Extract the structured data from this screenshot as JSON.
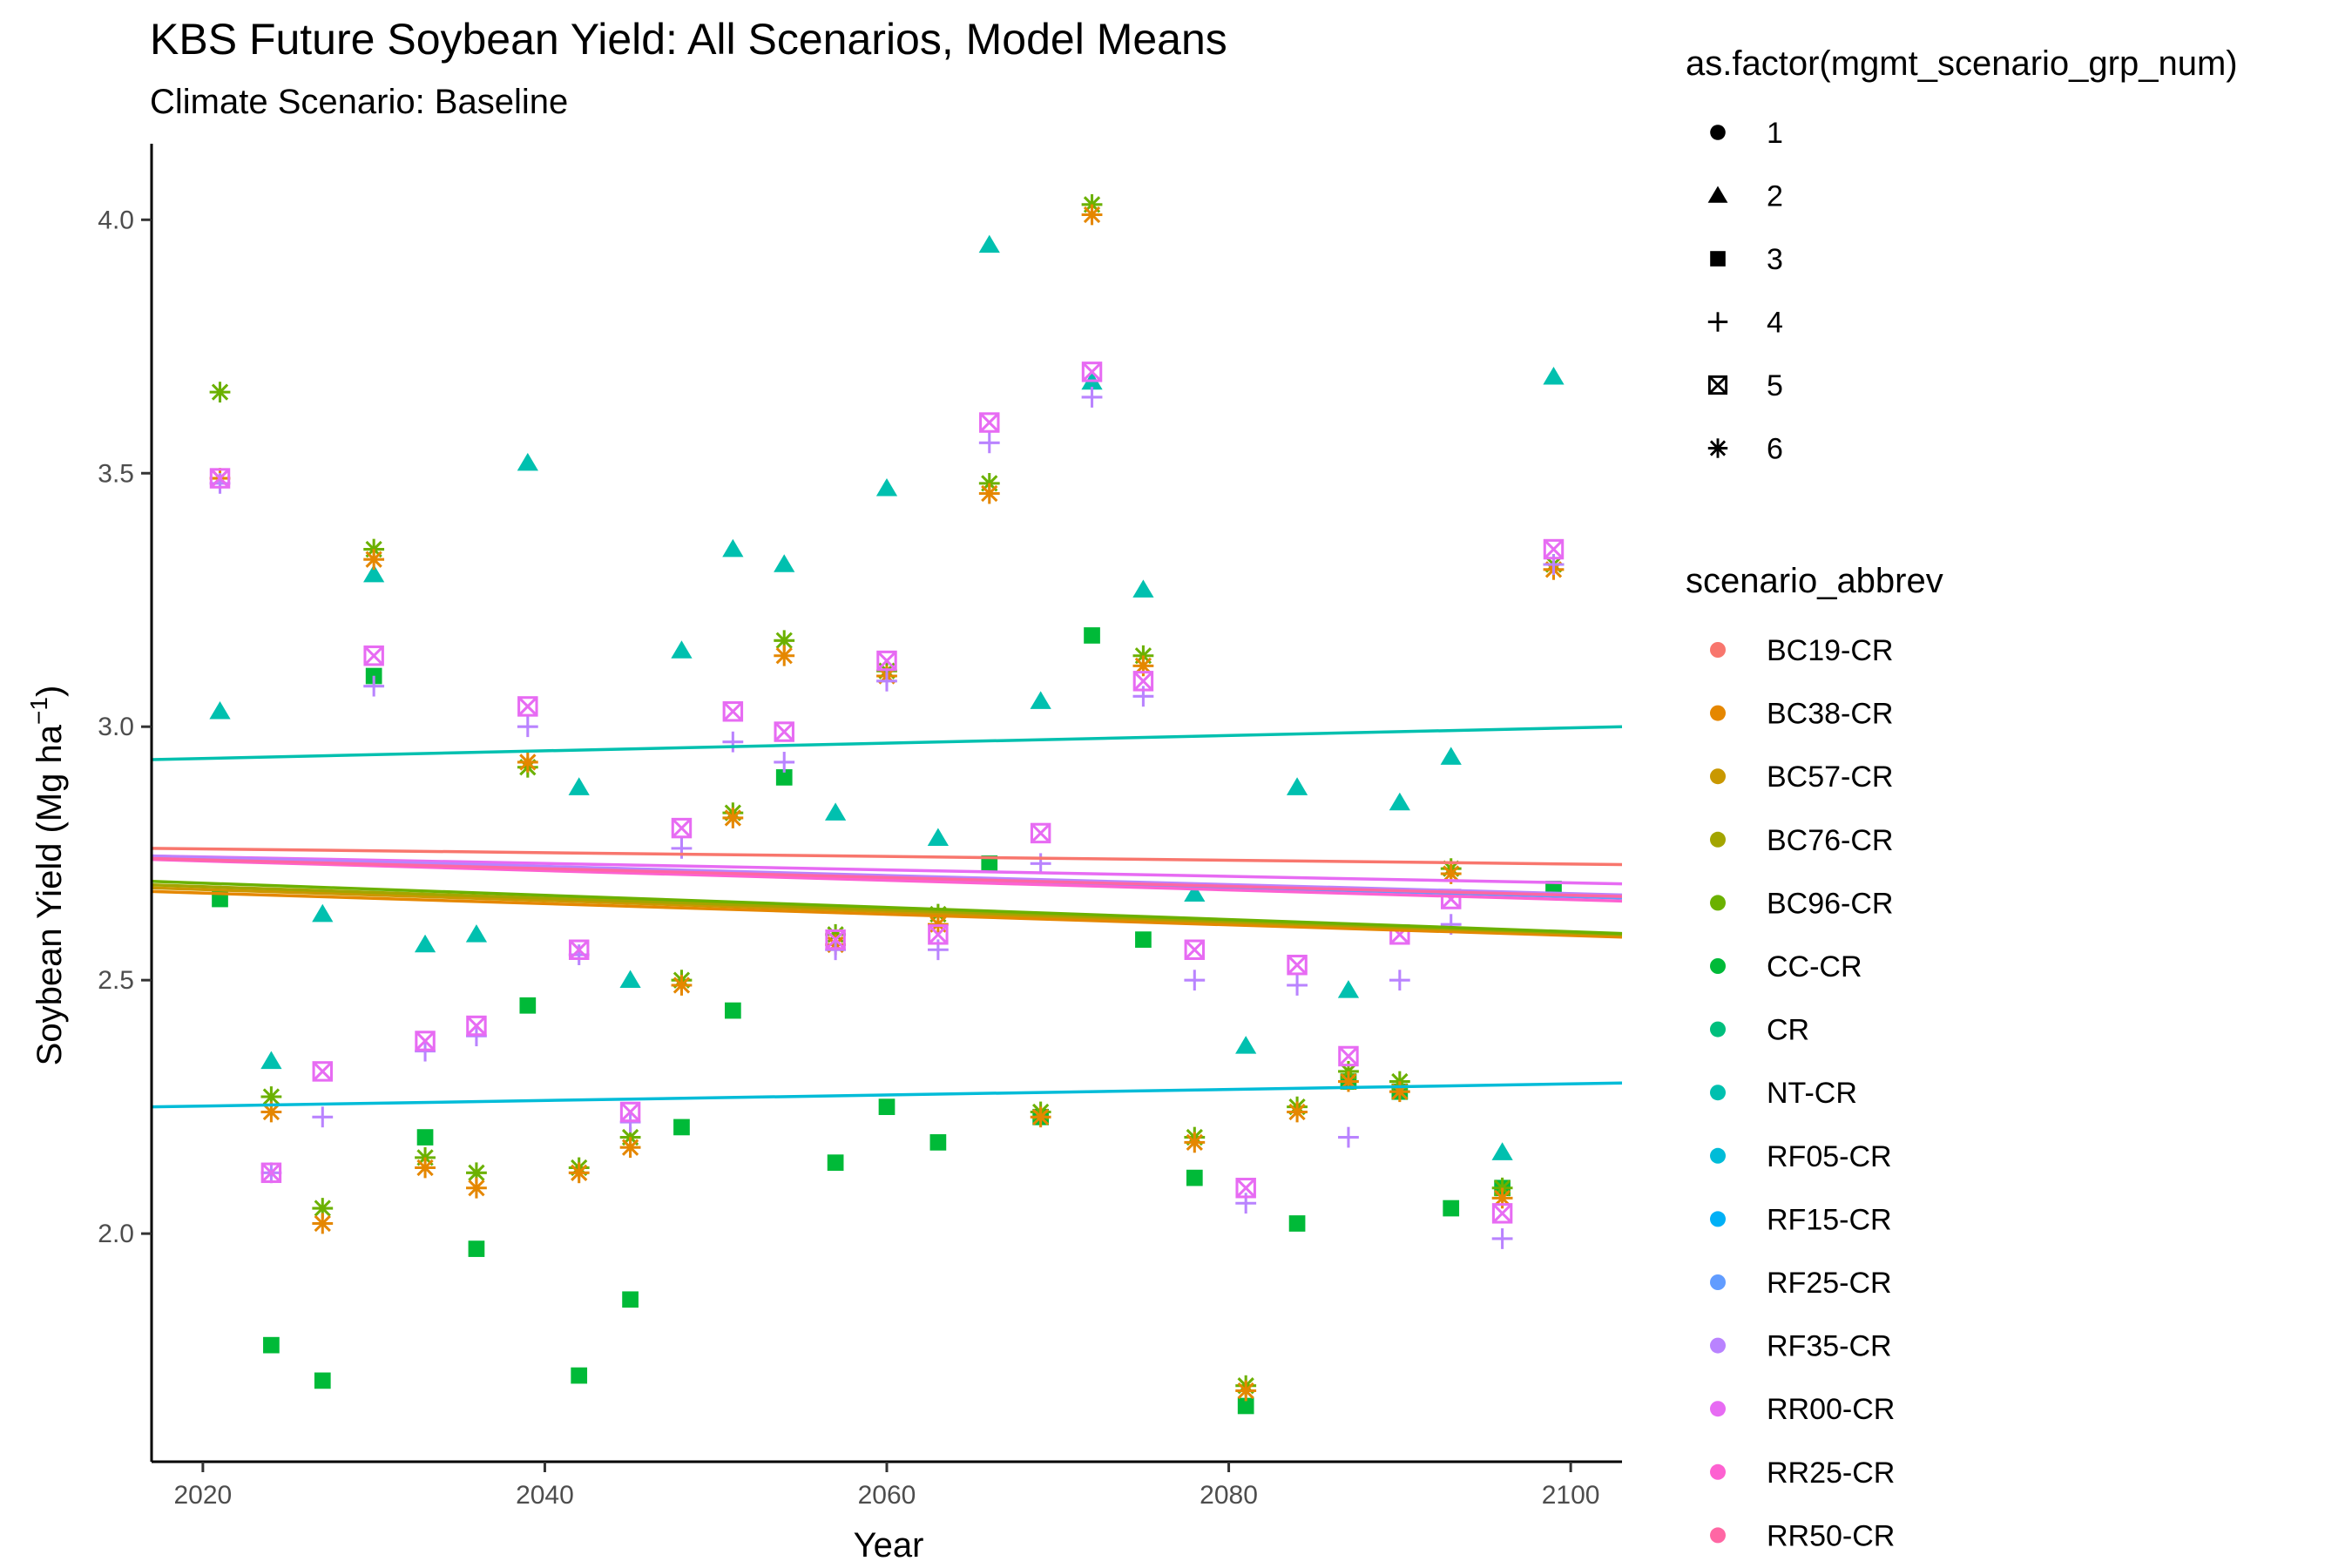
{
  "chart_data": {
    "type": "scatter",
    "title": "KBS  Future Soybean Yield: All Scenarios, Model Means",
    "subtitle": "Climate Scenario: Baseline",
    "xlabel": "Year",
    "ylabel_main": "Soybean Yield (Mg ha",
    "ylabel_sup": "−1",
    "ylabel_end": ")",
    "xlim": [
      2017,
      2103
    ],
    "ylim": [
      1.55,
      4.15
    ],
    "x_ticks": [
      2020,
      2040,
      2060,
      2080,
      2100
    ],
    "y_ticks": [
      2.0,
      2.5,
      3.0,
      3.5,
      4.0
    ],
    "y_tick_labels": [
      "2.0",
      "2.5",
      "3.0",
      "3.5",
      "4.0"
    ],
    "grid": false,
    "legend_position": "right",
    "shape_legend": {
      "title": "as.factor(mgmt_scenario_grp_num)",
      "entries": [
        {
          "label": "1",
          "shape": "circle"
        },
        {
          "label": "2",
          "shape": "triangle"
        },
        {
          "label": "3",
          "shape": "square"
        },
        {
          "label": "4",
          "shape": "plus"
        },
        {
          "label": "5",
          "shape": "boxx"
        },
        {
          "label": "6",
          "shape": "asterisk"
        }
      ]
    },
    "color_legend": {
      "title": "scenario_abbrev",
      "entries": [
        {
          "label": "BC19-CR",
          "color": "#F8766D"
        },
        {
          "label": "BC38-CR",
          "color": "#E58700"
        },
        {
          "label": "BC57-CR",
          "color": "#C99800"
        },
        {
          "label": "BC76-CR",
          "color": "#A3A500"
        },
        {
          "label": "BC96-CR",
          "color": "#6BB100"
        },
        {
          "label": "CC-CR",
          "color": "#00BA38"
        },
        {
          "label": "CR",
          "color": "#00BF7D"
        },
        {
          "label": "NT-CR",
          "color": "#00C0AF"
        },
        {
          "label": "RF05-CR",
          "color": "#00BCD8"
        },
        {
          "label": "RF15-CR",
          "color": "#00B0F6"
        },
        {
          "label": "RF25-CR",
          "color": "#619CFF"
        },
        {
          "label": "RF35-CR",
          "color": "#B983FF"
        },
        {
          "label": "RR00-CR",
          "color": "#E76BF3"
        },
        {
          "label": "RR25-CR",
          "color": "#FD61D1"
        },
        {
          "label": "RR50-CR",
          "color": "#FF67A4"
        }
      ]
    },
    "years": [
      2021,
      2024,
      2027,
      2030,
      2033,
      2036,
      2039,
      2042,
      2045,
      2048,
      2051,
      2054,
      2057,
      2060,
      2063,
      2066,
      2069,
      2072,
      2075,
      2078,
      2081,
      2084,
      2087,
      2090,
      2093,
      2096,
      2099
    ],
    "series": [
      {
        "group": "2",
        "color": "#00C0AF",
        "values": [
          3.03,
          2.34,
          2.63,
          3.3,
          2.57,
          2.59,
          3.52,
          2.88,
          2.5,
          3.15,
          3.35,
          3.32,
          2.83,
          3.47,
          2.78,
          3.95,
          3.05,
          3.68,
          3.27,
          2.67,
          2.37,
          2.88,
          2.48,
          2.85,
          2.94,
          2.16,
          3.69
        ]
      },
      {
        "group": "3",
        "color": "#00BA38",
        "values": [
          2.66,
          1.78,
          1.71,
          3.1,
          2.19,
          1.97,
          2.45,
          1.72,
          1.87,
          2.21,
          2.44,
          2.9,
          2.14,
          2.25,
          2.18,
          2.73,
          2.23,
          3.18,
          2.58,
          2.11,
          1.66,
          2.02,
          2.3,
          2.28,
          2.05,
          2.09,
          2.68
        ]
      },
      {
        "group": "6",
        "color": "#6BB100",
        "values": [
          3.66,
          2.27,
          2.05,
          3.35,
          2.15,
          2.12,
          2.92,
          2.13,
          2.19,
          2.5,
          2.83,
          3.17,
          2.59,
          3.11,
          2.63,
          3.48,
          2.24,
          4.03,
          3.14,
          2.19,
          1.7,
          2.25,
          2.32,
          2.3,
          2.72,
          2.09,
          3.32
        ]
      },
      {
        "group": "6",
        "color": "#E58700",
        "values": [
          3.49,
          2.24,
          2.02,
          3.33,
          2.13,
          2.09,
          2.93,
          2.12,
          2.17,
          2.49,
          2.82,
          3.14,
          2.57,
          3.1,
          2.61,
          3.46,
          2.23,
          4.01,
          3.12,
          2.18,
          1.69,
          2.24,
          2.3,
          2.28,
          2.71,
          2.07,
          3.31
        ]
      },
      {
        "group": "4",
        "color": "#B983FF",
        "values": [
          3.48,
          2.12,
          2.23,
          3.08,
          2.36,
          2.39,
          3.0,
          2.55,
          2.22,
          2.76,
          2.97,
          2.93,
          2.56,
          3.09,
          2.56,
          3.56,
          2.73,
          3.65,
          3.06,
          2.5,
          2.06,
          2.49,
          2.19,
          2.5,
          2.61,
          1.99,
          3.32
        ]
      },
      {
        "group": "5",
        "color": "#E76BF3",
        "values": [
          3.49,
          2.12,
          2.32,
          3.14,
          2.38,
          2.41,
          3.04,
          2.56,
          2.24,
          2.8,
          3.03,
          2.99,
          2.58,
          3.13,
          2.59,
          3.6,
          2.79,
          3.7,
          3.09,
          2.56,
          2.09,
          2.53,
          2.35,
          2.59,
          2.66,
          2.04,
          3.35
        ]
      }
    ],
    "trend_lines": [
      {
        "name": "NT-CR",
        "color": "#00C0AF",
        "x": [
          2017,
          2103
        ],
        "y": [
          2.935,
          3.0
        ]
      },
      {
        "name": "RF05-CR",
        "color": "#00BCD8",
        "x": [
          2017,
          2103
        ],
        "y": [
          2.25,
          2.297
        ]
      },
      {
        "name": "BC19-CR",
        "color": "#F8766D",
        "x": [
          2017,
          2103
        ],
        "y": [
          2.76,
          2.728
        ]
      },
      {
        "name": "RR00-CR",
        "color": "#E76BF3",
        "x": [
          2017,
          2103
        ],
        "y": [
          2.745,
          2.69
        ]
      },
      {
        "name": "RF25-CR",
        "color": "#619CFF",
        "x": [
          2017,
          2103
        ],
        "y": [
          2.742,
          2.662
        ]
      },
      {
        "name": "RF35-CR",
        "color": "#B983FF",
        "x": [
          2017,
          2103
        ],
        "y": [
          2.745,
          2.668
        ]
      },
      {
        "name": "RR25-CR",
        "color": "#FD61D1",
        "x": [
          2017,
          2103
        ],
        "y": [
          2.738,
          2.656
        ]
      },
      {
        "name": "RR50-CR",
        "color": "#FF67A4",
        "x": [
          2017,
          2103
        ],
        "y": [
          2.74,
          2.665
        ]
      },
      {
        "name": "BC38-CR",
        "color": "#E58700",
        "x": [
          2017,
          2103
        ],
        "y": [
          2.675,
          2.585
        ]
      },
      {
        "name": "BC57-CR",
        "color": "#C99800",
        "x": [
          2017,
          2103
        ],
        "y": [
          2.682,
          2.589
        ]
      },
      {
        "name": "BC76-CR",
        "color": "#A3A500",
        "x": [
          2017,
          2103
        ],
        "y": [
          2.688,
          2.59
        ]
      },
      {
        "name": "BC96-CR",
        "color": "#6BB100",
        "x": [
          2017,
          2103
        ],
        "y": [
          2.695,
          2.592
        ]
      }
    ]
  }
}
